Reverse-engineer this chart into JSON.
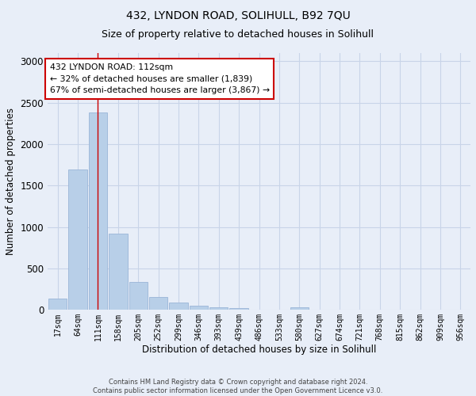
{
  "title": "432, LYNDON ROAD, SOLIHULL, B92 7QU",
  "subtitle": "Size of property relative to detached houses in Solihull",
  "xlabel": "Distribution of detached houses by size in Solihull",
  "ylabel": "Number of detached properties",
  "footer_line1": "Contains HM Land Registry data © Crown copyright and database right 2024.",
  "footer_line2": "Contains public sector information licensed under the Open Government Licence v3.0.",
  "bar_labels": [
    "17sqm",
    "64sqm",
    "111sqm",
    "158sqm",
    "205sqm",
    "252sqm",
    "299sqm",
    "346sqm",
    "393sqm",
    "439sqm",
    "486sqm",
    "533sqm",
    "580sqm",
    "627sqm",
    "674sqm",
    "721sqm",
    "768sqm",
    "815sqm",
    "862sqm",
    "909sqm",
    "956sqm"
  ],
  "bar_values": [
    140,
    1700,
    2380,
    920,
    340,
    160,
    90,
    55,
    35,
    25,
    0,
    0,
    30,
    0,
    0,
    0,
    0,
    0,
    0,
    0,
    0
  ],
  "bar_color": "#b8cfe8",
  "bar_edge_color": "#9ab5d8",
  "highlight_bar_index": 2,
  "highlight_line_color": "#cc0000",
  "annotation_title": "432 LYNDON ROAD: 112sqm",
  "annotation_line1": "← 32% of detached houses are smaller (1,839)",
  "annotation_line2": "67% of semi-detached houses are larger (3,867) →",
  "annotation_box_facecolor": "#ffffff",
  "annotation_box_edgecolor": "#cc0000",
  "ylim": [
    0,
    3100
  ],
  "yticks": [
    0,
    500,
    1000,
    1500,
    2000,
    2500,
    3000
  ],
  "grid_color": "#c8d4e8",
  "bg_color": "#e8eef8",
  "plot_bg_color": "#e8eef8",
  "title_fontsize": 10,
  "subtitle_fontsize": 9
}
